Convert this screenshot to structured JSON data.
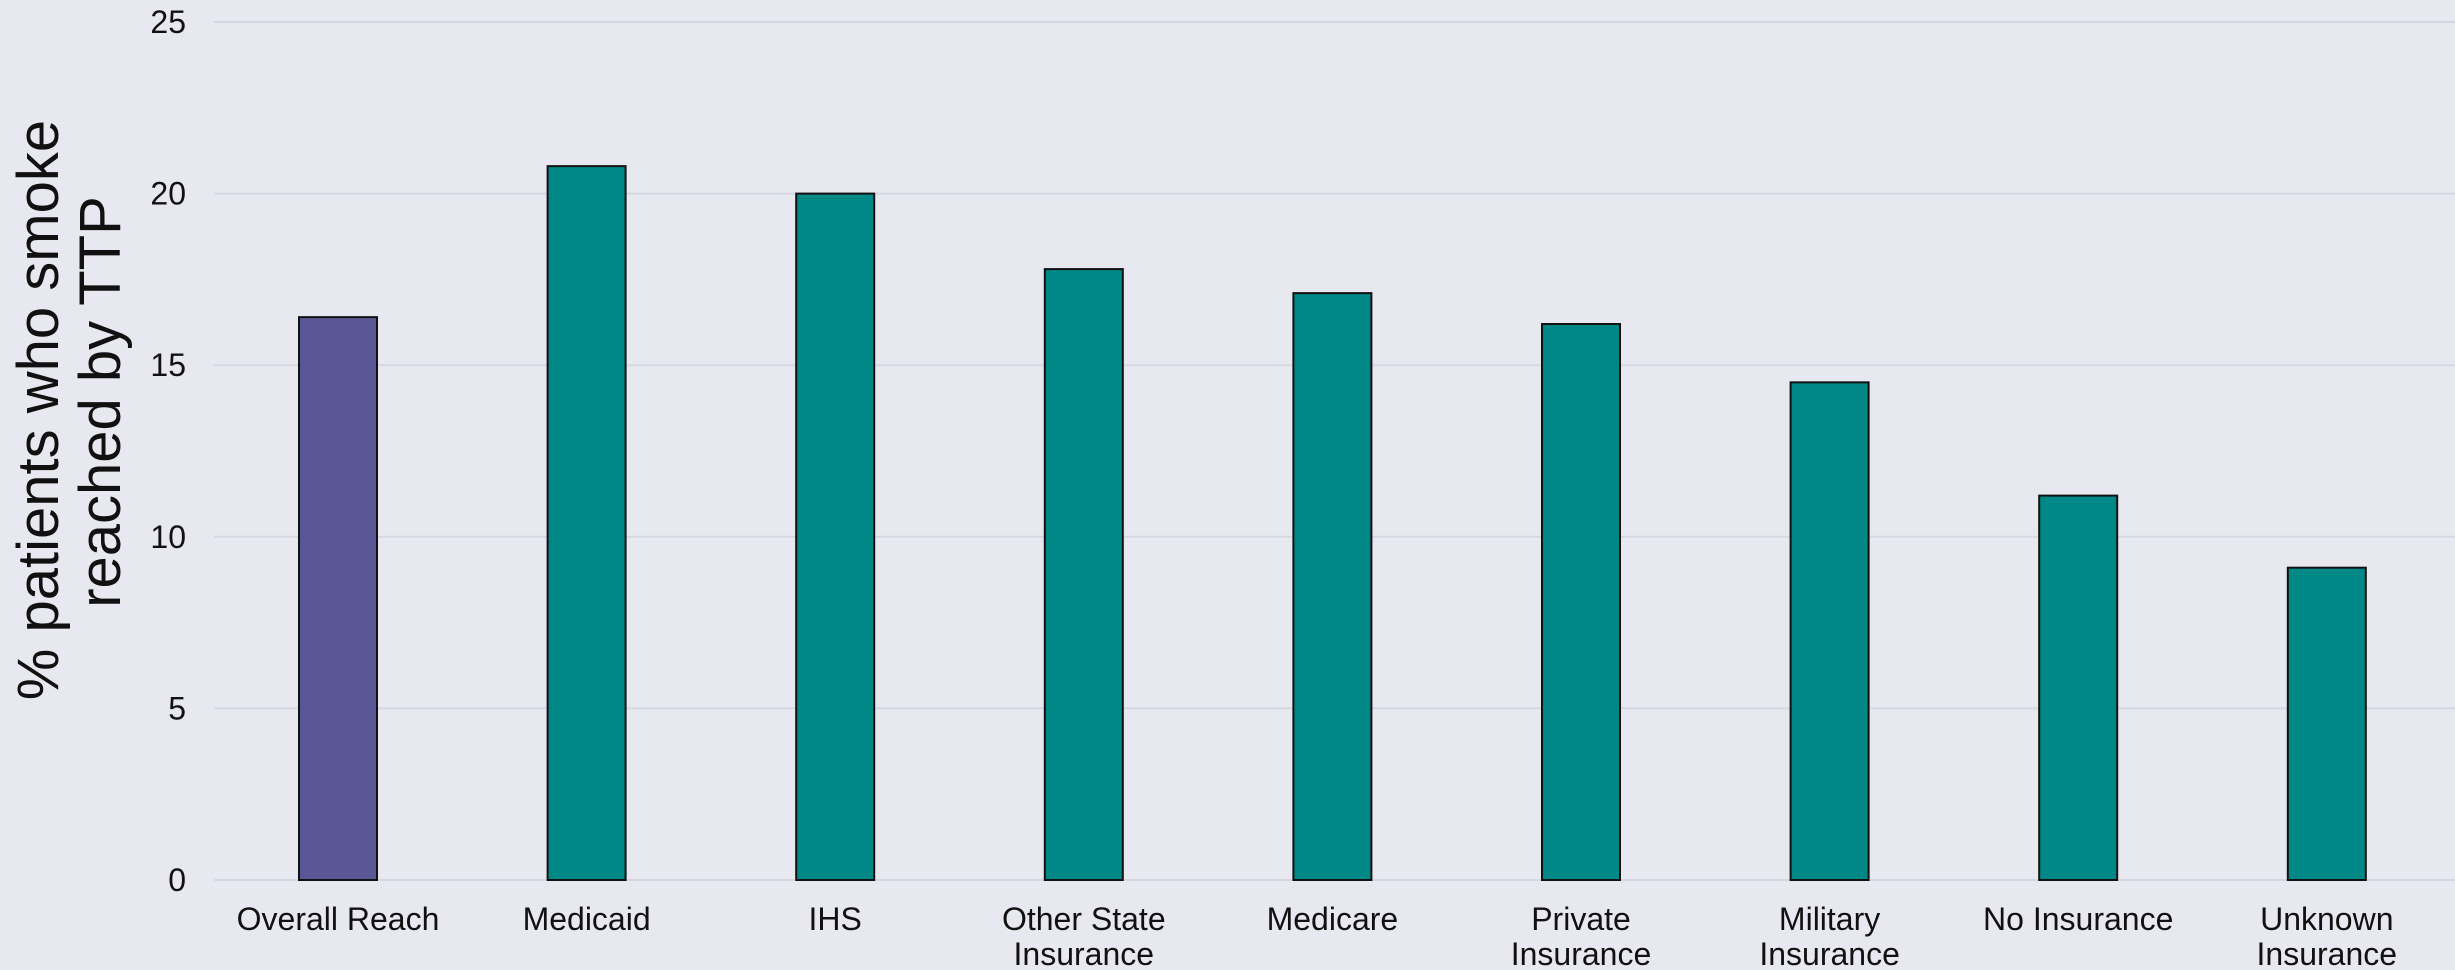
{
  "chart_data": {
    "type": "bar",
    "title": "",
    "xlabel": "",
    "ylabel_lines": [
      "% patients who smoke",
      "reached by TTP"
    ],
    "ylim": [
      0,
      25
    ],
    "yticks": [
      0,
      5,
      10,
      15,
      20,
      25
    ],
    "grid": true,
    "categories": [
      [
        "Overall Reach"
      ],
      [
        "Medicaid"
      ],
      [
        "IHS"
      ],
      [
        "Other State",
        "Insurance"
      ],
      [
        "Medicare"
      ],
      [
        "Private",
        "Insurance"
      ],
      [
        "Military",
        "Insurance"
      ],
      [
        "No Insurance"
      ],
      [
        "Unknown",
        "Insurance"
      ]
    ],
    "values": [
      16.4,
      20.8,
      20.0,
      17.8,
      17.1,
      16.2,
      14.5,
      11.2,
      9.1
    ],
    "bar_colors": [
      "#5a5796",
      "#008886",
      "#008886",
      "#008886",
      "#008886",
      "#008886",
      "#008886",
      "#008886",
      "#008886"
    ],
    "bar_edge_color": "#111111",
    "background_color": "#e8e8f1",
    "grid_color": "#d7d7e2"
  }
}
